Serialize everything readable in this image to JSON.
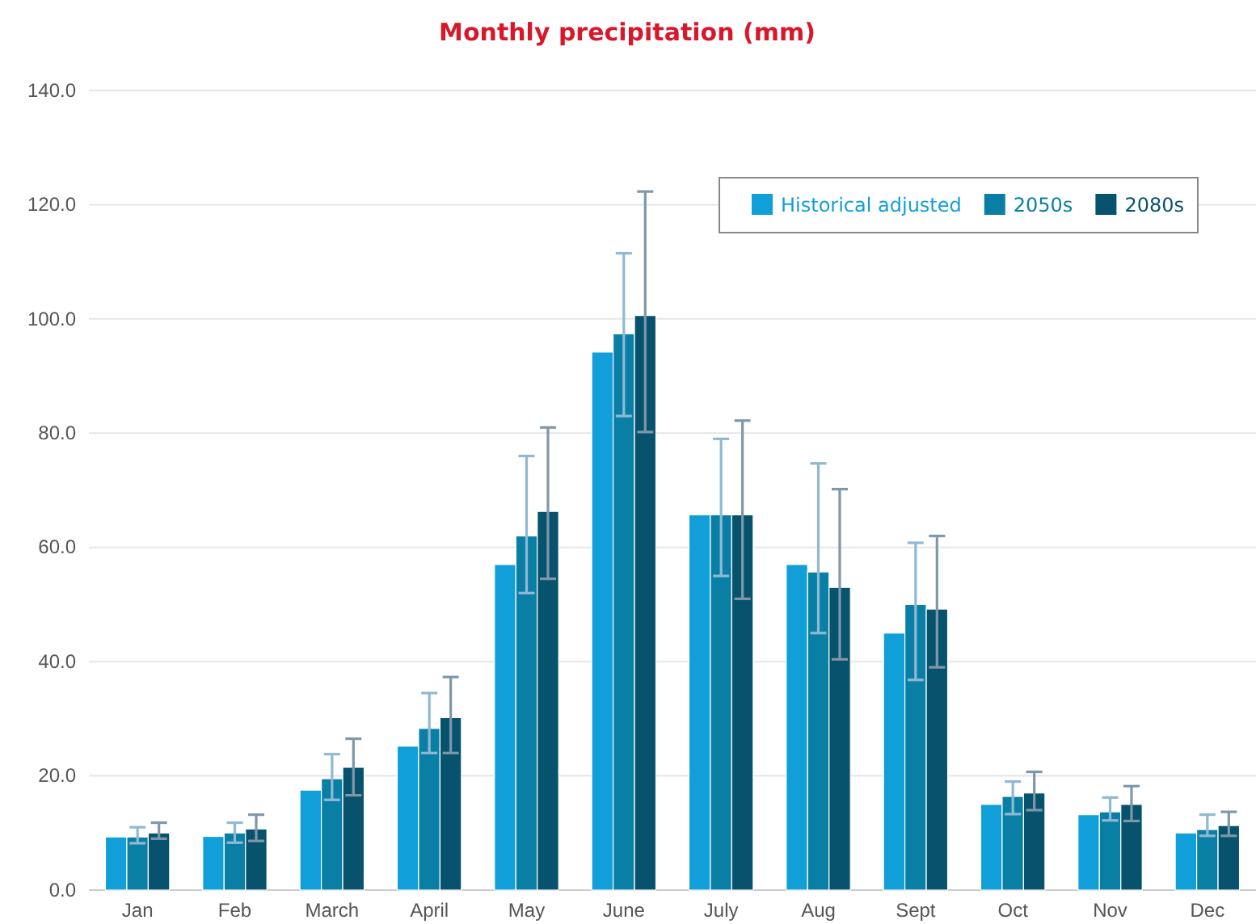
{
  "chart_data": {
    "type": "bar",
    "title": "Monthly precipitation (mm)",
    "categories": [
      "Jan",
      "Feb",
      "March",
      "April",
      "May",
      "June",
      "July",
      "Aug",
      "Sept",
      "Oct",
      "Nov",
      "Dec"
    ],
    "series": [
      {
        "name": "Historical adjusted",
        "color": "#109fd9",
        "values": [
          9.3,
          9.4,
          17.5,
          25.2,
          57,
          94.2,
          65.7,
          57,
          45,
          15,
          13.2,
          10
        ]
      },
      {
        "name": "2050s",
        "color": "#0a7fa6",
        "values": [
          9.3,
          10,
          19.5,
          28.3,
          62,
          97.4,
          65.7,
          55.7,
          50,
          16.4,
          13.7,
          10.6
        ],
        "errors": [
          [
            8.2,
            11
          ],
          [
            8.3,
            11.8
          ],
          [
            15.8,
            23.8
          ],
          [
            24,
            34.5
          ],
          [
            52,
            76
          ],
          [
            83,
            111.5
          ],
          [
            55,
            79
          ],
          [
            45,
            74.7
          ],
          [
            36.8,
            60.8
          ],
          [
            13.3,
            19
          ],
          [
            12.2,
            16.2
          ],
          [
            9.5,
            13.2
          ]
        ]
      },
      {
        "name": "2080s",
        "color": "#07536e",
        "values": [
          10,
          10.7,
          21.5,
          30.2,
          66.3,
          100.6,
          65.7,
          53,
          49.2,
          17,
          15,
          11.3
        ],
        "errors": [
          [
            9,
            11.8
          ],
          [
            8.6,
            13.2
          ],
          [
            16.6,
            26.5
          ],
          [
            24,
            37.3
          ],
          [
            54.5,
            81
          ],
          [
            80.2,
            122.3
          ],
          [
            51,
            82.2
          ],
          [
            40.4,
            70.2
          ],
          [
            39,
            62
          ],
          [
            14,
            20.7
          ],
          [
            12.1,
            18.2
          ],
          [
            9.5,
            13.7
          ]
        ]
      }
    ],
    "ylim": [
      0,
      140
    ],
    "yticks": [
      {
        "value": 0,
        "label": "0.0"
      },
      {
        "value": 20,
        "label": "20.0"
      },
      {
        "value": 40,
        "label": "40.0"
      },
      {
        "value": 60,
        "label": "60.0"
      },
      {
        "value": 80,
        "label": "80.0"
      },
      {
        "value": 100,
        "label": "100.0"
      },
      {
        "value": 120,
        "label": "120.0"
      },
      {
        "value": 140,
        "label": "140.0"
      }
    ],
    "grid": "y",
    "legend": "top right"
  }
}
